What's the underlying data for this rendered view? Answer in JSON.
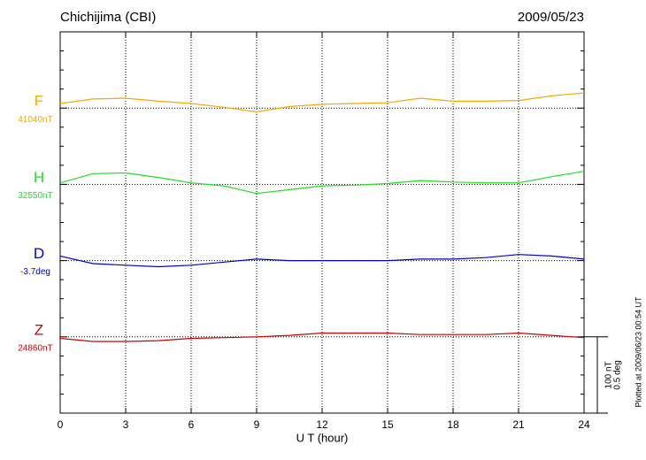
{
  "chart_data": {
    "type": "line",
    "title": "Chichijima (CBI)",
    "date": "2009/05/23",
    "footnote": "Plotted at 2009/06/23 00:54 UT",
    "xlabel": "U T (hour)",
    "xlim": [
      0,
      24
    ],
    "xticks": [
      0,
      3,
      6,
      9,
      12,
      15,
      18,
      21,
      24
    ],
    "x": [
      0,
      1.5,
      3,
      4.5,
      6,
      7.5,
      9,
      10.5,
      12,
      13.5,
      15,
      16.5,
      18,
      19.5,
      21,
      22.5,
      24
    ],
    "scale": [
      {
        "value": 100,
        "label": "100 nT"
      },
      {
        "value": 0.5,
        "label": "0.5 deg"
      }
    ],
    "grid": true,
    "series": [
      {
        "name": "F",
        "color": "#f5a800",
        "baseline": {
          "value": 41040,
          "label": "41040nT"
        },
        "values": [
          41046,
          41052,
          41053,
          41049,
          41046,
          41041,
          41035,
          41042,
          41045,
          41046,
          41047,
          41053,
          41049,
          41049,
          41050,
          41056,
          41060
        ]
      },
      {
        "name": "H",
        "color": "#22dd22",
        "baseline": {
          "value": 32550,
          "label": "32550nT"
        },
        "values": [
          32552,
          32564,
          32565,
          32559,
          32552,
          32548,
          32538,
          32543,
          32548,
          32549,
          32551,
          32555,
          32553,
          32552,
          32552,
          32560,
          32567
        ]
      },
      {
        "name": "D",
        "color": "#0000cc",
        "baseline": {
          "value": -3.7,
          "label": "-3.7deg"
        },
        "values": [
          -3.67,
          -3.72,
          -3.73,
          -3.74,
          -3.73,
          -3.71,
          -3.69,
          -3.7,
          -3.7,
          -3.7,
          -3.7,
          -3.69,
          -3.69,
          -3.68,
          -3.66,
          -3.67,
          -3.69
        ]
      },
      {
        "name": "Z",
        "color": "#cc0000",
        "baseline": {
          "value": 24860,
          "label": "24860nT"
        },
        "values": [
          24858,
          24854,
          24854,
          24855,
          24858,
          24859,
          24860,
          24862,
          24865,
          24865,
          24865,
          24863,
          24863,
          24863,
          24865,
          24862,
          24859
        ]
      }
    ]
  }
}
